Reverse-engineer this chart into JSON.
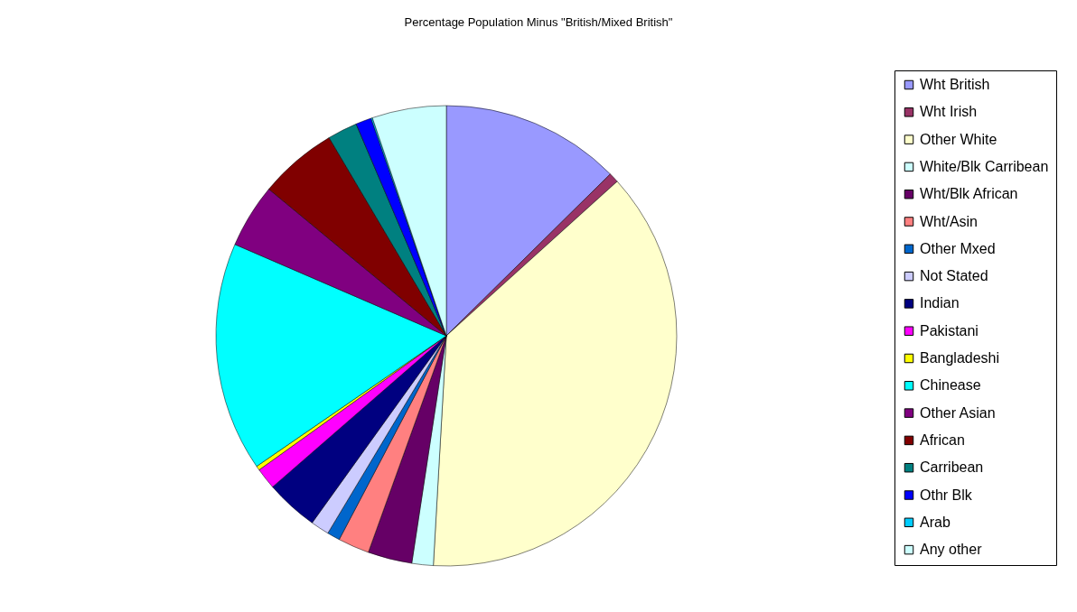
{
  "chart_data": {
    "type": "pie",
    "title": "Percentage Population Minus \"British/Mixed British\"",
    "categories": [
      "Wht British",
      "Wht Irish",
      "Other White",
      "White/Blk Carribean",
      "Wht/Blk African",
      "Wht/Asin",
      "Other Mxed",
      "Not Stated",
      "Indian",
      "Pakistani",
      "Bangladeshi",
      "Chinease",
      "Other Asian",
      "African",
      "Carribean",
      "Othr Blk",
      "Arab",
      "Any other"
    ],
    "values": [
      12.6,
      0.7,
      37.6,
      1.5,
      3.1,
      2.2,
      0.9,
      1.3,
      3.7,
      1.5,
      0.3,
      16.1,
      4.5,
      5.5,
      2.1,
      1.1,
      0.1,
      5.2
    ],
    "colors": [
      "#9999ff",
      "#993366",
      "#ffffcc",
      "#ccffff",
      "#660066",
      "#ff8080",
      "#0066cc",
      "#ccccff",
      "#000080",
      "#ff00ff",
      "#ffff00",
      "#00ffff",
      "#800080",
      "#800000",
      "#008080",
      "#0000ff",
      "#00ccff",
      "#ccffff"
    ],
    "legend": "right"
  }
}
